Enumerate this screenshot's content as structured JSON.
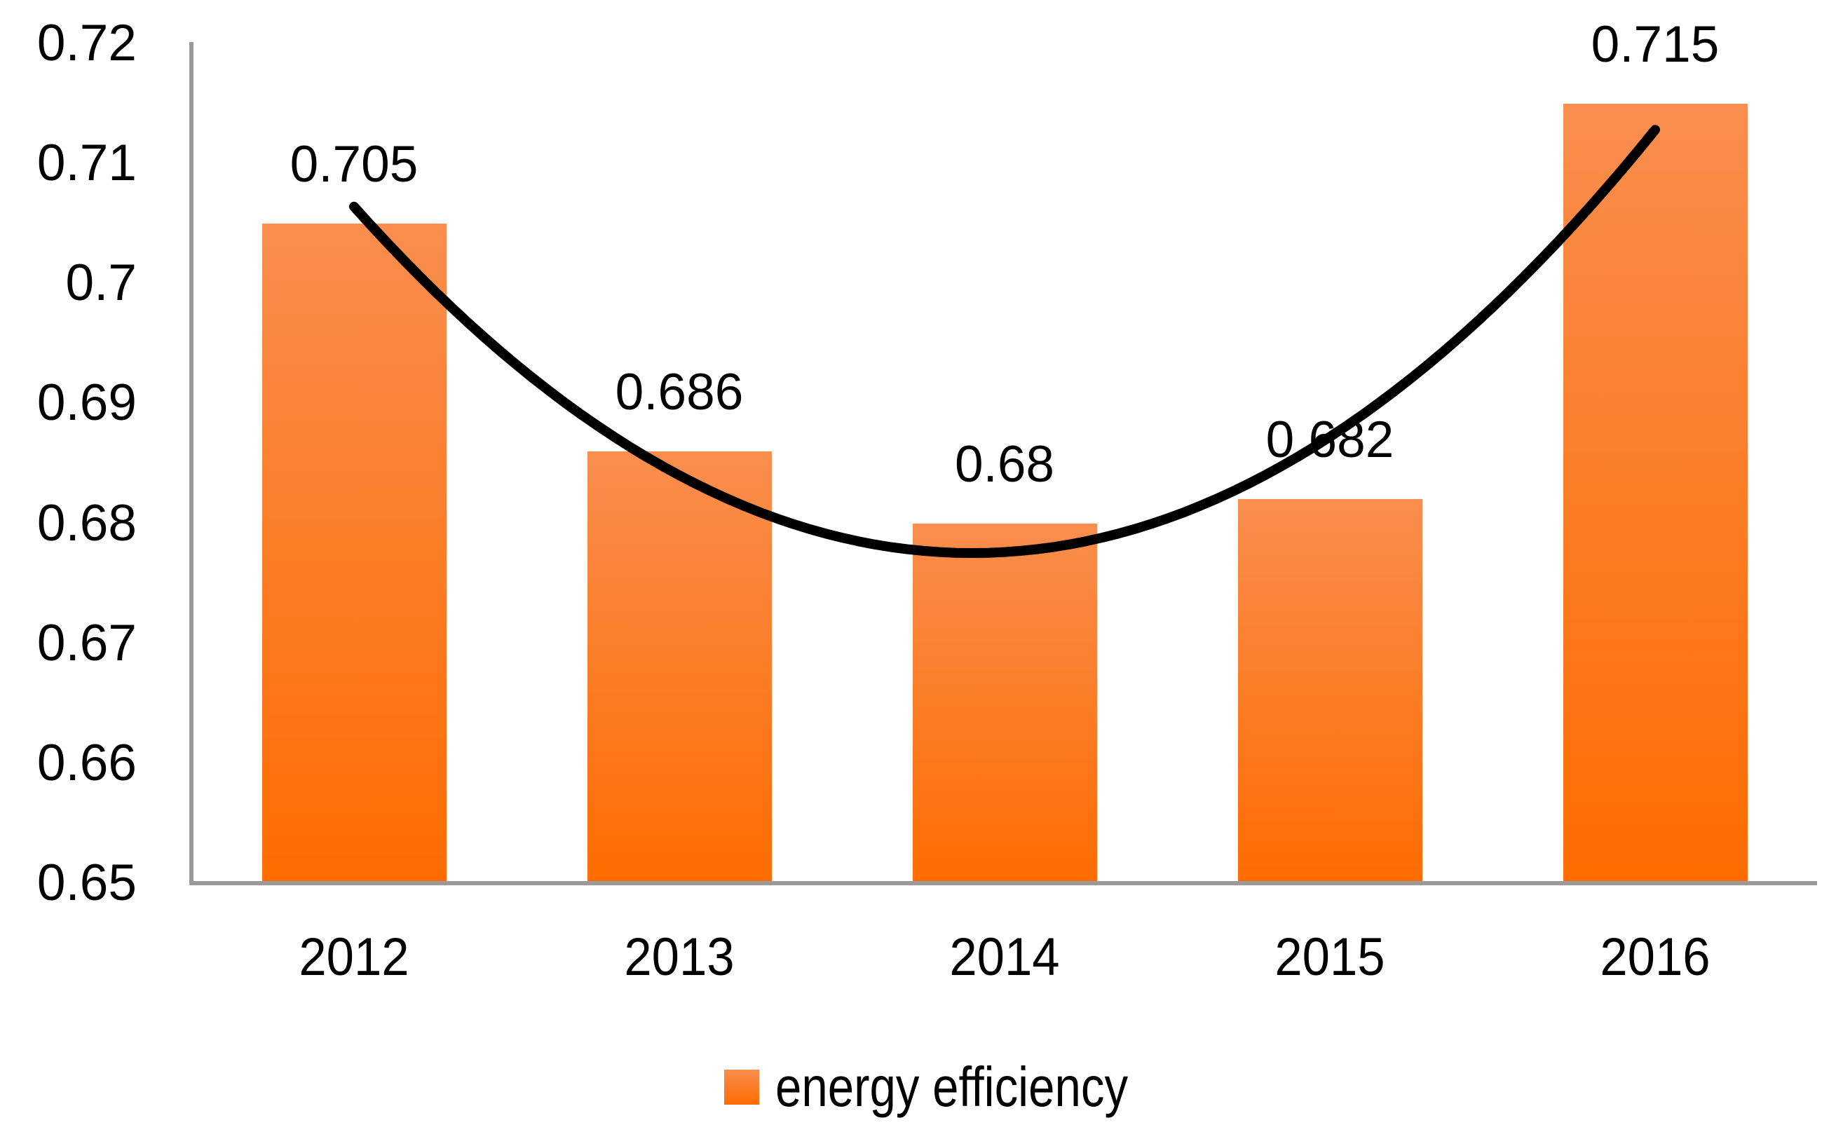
{
  "chart_data": {
    "type": "bar",
    "title": "",
    "categories": [
      "2012",
      "2013",
      "2014",
      "2015",
      "2016"
    ],
    "series": [
      {
        "name": "energy efficiency",
        "values": [
          0.705,
          0.686,
          0.68,
          0.682,
          0.715
        ]
      }
    ],
    "data_labels": [
      "0.705",
      "0.686",
      "0.68",
      "0.682",
      "0.715"
    ],
    "y_ticks": [
      "0.72",
      "0.71",
      "0.7",
      "0.69",
      "0.68",
      "0.67",
      "0.66",
      "0.65"
    ],
    "ylim": [
      0.65,
      0.72
    ],
    "grid": false,
    "legend": {
      "label": "energy efficiency",
      "position": "bottom"
    },
    "trendline": {
      "kind": "polynomial-order-2",
      "color": "#000000"
    },
    "colors": {
      "bar_top": "#F98E4E",
      "bar_bottom": "#FE6C01",
      "axis": "#999999",
      "text": "#000000"
    }
  }
}
